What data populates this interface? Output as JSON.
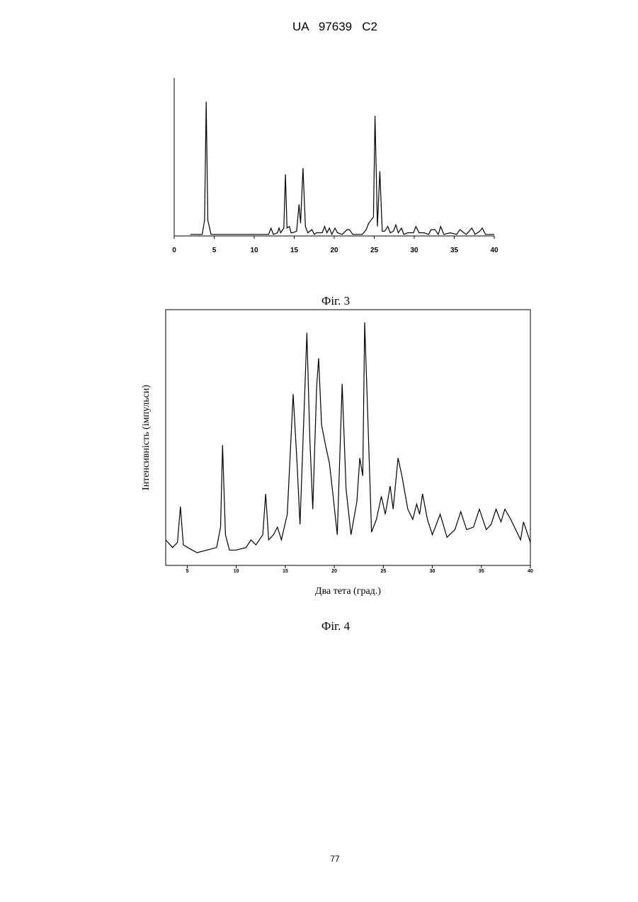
{
  "header": "UA   97639   C2",
  "page_number": "77",
  "chart_data": [
    {
      "type": "line",
      "caption": "Фіг. 3",
      "color": "#000000",
      "x": [
        2,
        3.5,
        3.8,
        4.0,
        4.2,
        4.6,
        7,
        11.8,
        12.1,
        12.4,
        12.9,
        13.1,
        13.3,
        13.7,
        13.9,
        14.1,
        14.4,
        14.6,
        14.8,
        15.3,
        15.6,
        15.8,
        16.1,
        16.4,
        16.7,
        17.2,
        17.5,
        17.8,
        18.5,
        18.8,
        19.1,
        19.4,
        19.7,
        20.1,
        20.4,
        21,
        21.6,
        21.9,
        22.3,
        23.5,
        24,
        24.3,
        24.6,
        24.9,
        25.1,
        25.4,
        25.7,
        26,
        26.3,
        26.7,
        27,
        27.4,
        27.7,
        28,
        28.4,
        28.7,
        29.2,
        29.9,
        30.2,
        30.6,
        31.2,
        31.8,
        32.1,
        32.6,
        33,
        33.3,
        33.7,
        34.5,
        35.3,
        35.7,
        36.5,
        37.2,
        37.6,
        38.2,
        38.5,
        38.9,
        40
      ],
      "values": [
        1,
        1,
        10,
        85,
        10,
        1,
        1,
        1,
        5,
        1,
        2,
        5,
        2,
        5,
        39,
        5,
        6,
        2,
        2,
        3,
        20,
        8,
        43,
        6,
        2,
        4,
        1,
        2,
        2,
        6,
        2,
        5,
        1,
        5,
        2,
        1,
        4,
        4,
        1,
        1,
        4,
        8,
        10,
        12,
        76,
        6,
        41,
        3,
        3,
        6,
        2,
        3,
        7,
        2,
        5,
        1,
        2,
        2,
        6,
        2,
        2,
        1,
        4,
        4,
        1,
        6,
        1,
        2,
        1,
        4,
        1,
        5,
        1,
        3,
        5,
        1,
        1
      ],
      "xlim": [
        0,
        40
      ],
      "ylim": [
        0,
        100
      ],
      "xticks": [
        0,
        5,
        10,
        15,
        20,
        25,
        30,
        35,
        40
      ]
    },
    {
      "type": "line",
      "caption": "Фіг. 4",
      "color": "#000000",
      "frame": true,
      "x_label": "Два тета (град.)",
      "y_label": "Інтенсивність (імпульси)",
      "x": [
        2.8,
        3.5,
        4.0,
        4.3,
        4.6,
        5.5,
        6,
        7,
        8,
        8.4,
        8.6,
        8.9,
        9.3,
        10,
        11,
        11.5,
        12,
        12.7,
        13,
        13.3,
        13.8,
        14.2,
        14.6,
        15.2,
        15.8,
        16.2,
        16.5,
        17.2,
        17.5,
        17.8,
        18.2,
        18.4,
        18.7,
        19.1,
        19.5,
        19.8,
        20.3,
        20.8,
        21.2,
        21.7,
        22.3,
        22.6,
        22.9,
        23.1,
        23.4,
        23.8,
        24.3,
        24.8,
        25.2,
        25.7,
        26,
        26.5,
        26.9,
        27.5,
        28,
        28.4,
        28.7,
        29,
        29.5,
        30,
        30.8,
        31.5,
        32.3,
        32.9,
        33.5,
        34.2,
        34.8,
        35.5,
        36,
        36.5,
        37,
        37.4,
        38,
        39,
        39.3,
        40
      ],
      "values": [
        10,
        7,
        9,
        23,
        8,
        6,
        5,
        6,
        7,
        15,
        47,
        12,
        6,
        6,
        7,
        10,
        8,
        12,
        28,
        10,
        12,
        15,
        10,
        20,
        67,
        40,
        16,
        91,
        50,
        22,
        70,
        81,
        55,
        47,
        40,
        30,
        12,
        71,
        30,
        12,
        25,
        42,
        35,
        95,
        60,
        13,
        18,
        27,
        20,
        31,
        22,
        42,
        35,
        22,
        18,
        24,
        20,
        28,
        18,
        12,
        20,
        11,
        14,
        21,
        14,
        15,
        22,
        14,
        16,
        22,
        17,
        22,
        18,
        10,
        17,
        9
      ],
      "xlim": [
        2.8,
        40
      ],
      "ylim": [
        0,
        100
      ],
      "xticks": [
        5,
        10,
        15,
        20,
        25,
        30,
        35,
        40
      ]
    }
  ]
}
